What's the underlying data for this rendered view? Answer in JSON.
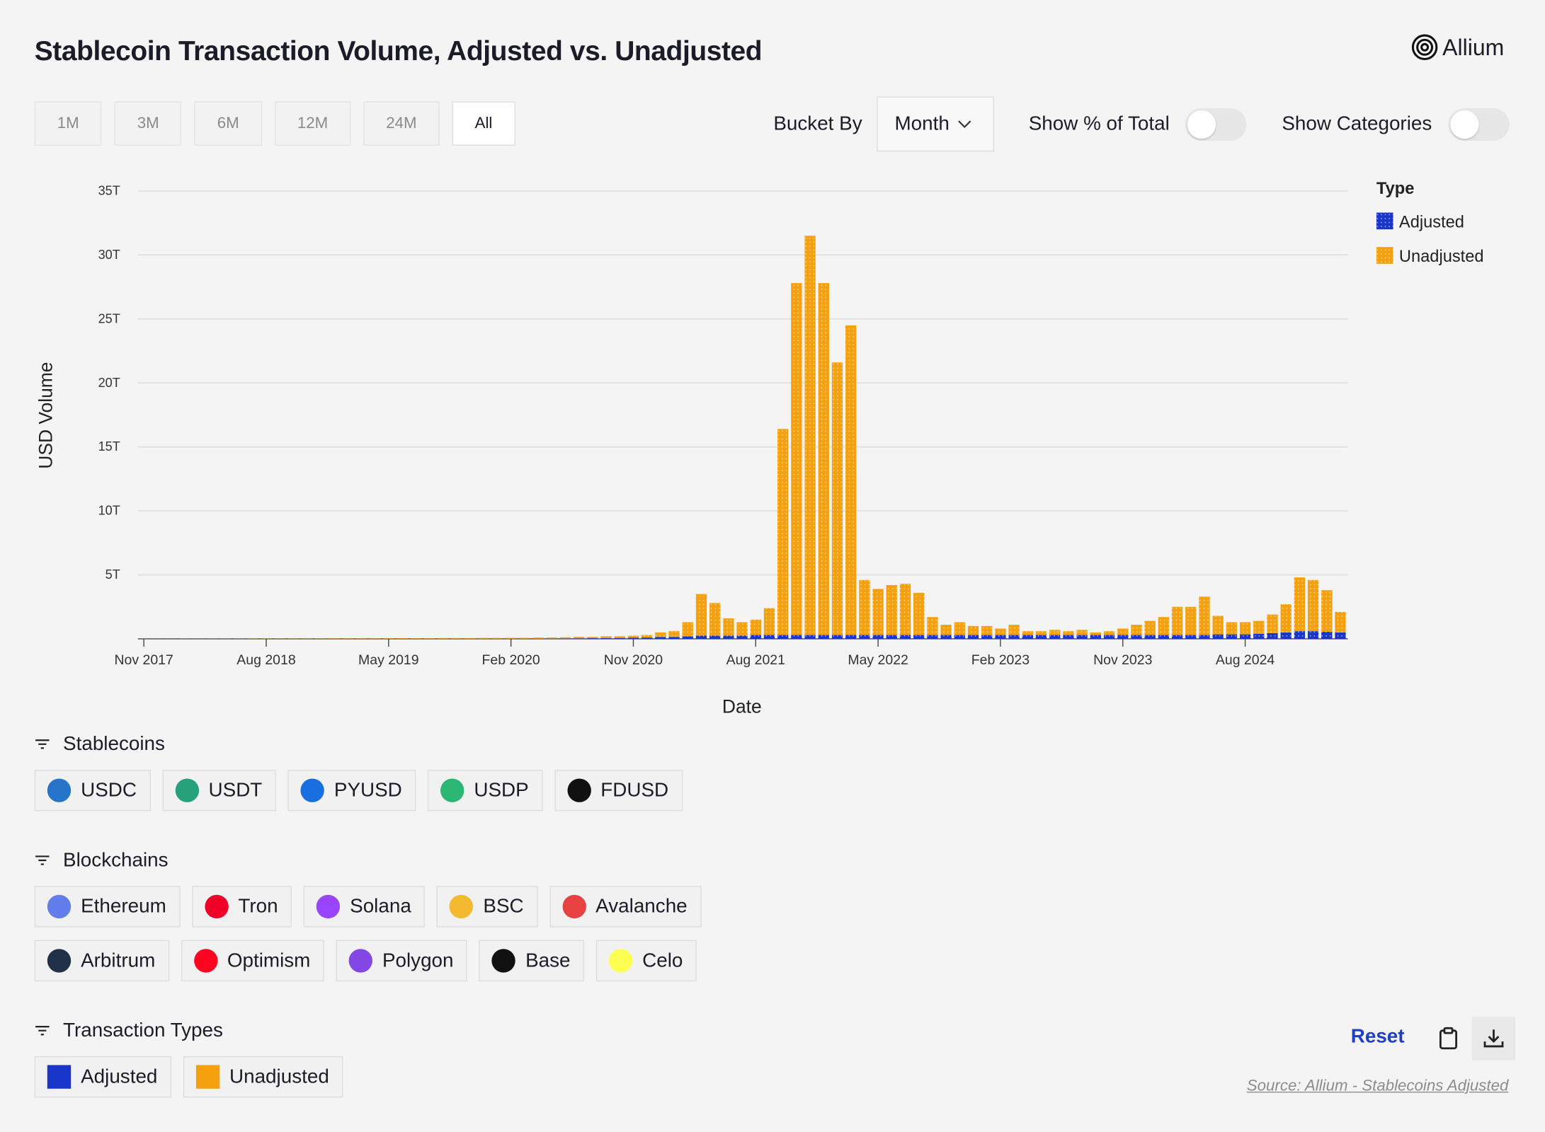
{
  "header": {
    "title": "Stablecoin Transaction Volume, Adjusted vs. Unadjusted",
    "brand": "Allium"
  },
  "controls": {
    "ranges": [
      "1M",
      "3M",
      "6M",
      "12M",
      "24M",
      "All"
    ],
    "bucket_label": "Bucket By",
    "bucket_value": "Month",
    "toggles": [
      "Show % of Total",
      "Show Categories"
    ]
  },
  "chart_data": {
    "type": "stacked_bar",
    "y_label": "USD Volume",
    "x_label": "Date",
    "legend_title": "Type",
    "legend": "right",
    "grid": true,
    "ylim": [
      0,
      35
    ],
    "yticks": [
      {
        "value": 5,
        "label": "5T"
      },
      {
        "value": 10,
        "label": "10T"
      },
      {
        "value": 15,
        "label": "15T"
      },
      {
        "value": 20,
        "label": "20T"
      },
      {
        "value": 25,
        "label": "25T"
      },
      {
        "value": 30,
        "label": "30T"
      },
      {
        "value": 35,
        "label": "35T"
      }
    ],
    "x": [
      "2017-11",
      "2017-12",
      "2018-01",
      "2018-02",
      "2018-03",
      "2018-04",
      "2018-05",
      "2018-06",
      "2018-07",
      "2018-08",
      "2018-09",
      "2018-10",
      "2018-11",
      "2018-12",
      "2019-01",
      "2019-02",
      "2019-03",
      "2019-04",
      "2019-05",
      "2019-06",
      "2019-07",
      "2019-08",
      "2019-09",
      "2019-10",
      "2019-11",
      "2019-12",
      "2020-01",
      "2020-02",
      "2020-03",
      "2020-04",
      "2020-05",
      "2020-06",
      "2020-07",
      "2020-08",
      "2020-09",
      "2020-10",
      "2020-11",
      "2020-12",
      "2021-01",
      "2021-02",
      "2021-03",
      "2021-04",
      "2021-05",
      "2021-06",
      "2021-07",
      "2021-08",
      "2021-09",
      "2021-10",
      "2021-11",
      "2021-12",
      "2022-01",
      "2022-02",
      "2022-03",
      "2022-04",
      "2022-05",
      "2022-06",
      "2022-07",
      "2022-08",
      "2022-09",
      "2022-10",
      "2022-11",
      "2022-12",
      "2023-01",
      "2023-02",
      "2023-03",
      "2023-04",
      "2023-05",
      "2023-06",
      "2023-07",
      "2023-08",
      "2023-09",
      "2023-10",
      "2023-11",
      "2023-12",
      "2024-01",
      "2024-02",
      "2024-03",
      "2024-04",
      "2024-05",
      "2024-06",
      "2024-07",
      "2024-08",
      "2024-09",
      "2024-10",
      "2024-11",
      "2024-12",
      "2025-01",
      "2025-02",
      "2025-03"
    ],
    "xticks": [
      {
        "value": "2017-11",
        "label": "Nov 2017"
      },
      {
        "value": "2018-08",
        "label": "Aug 2018"
      },
      {
        "value": "2019-05",
        "label": "May 2019"
      },
      {
        "value": "2020-02",
        "label": "Feb 2020"
      },
      {
        "value": "2020-11",
        "label": "Nov 2020"
      },
      {
        "value": "2021-08",
        "label": "Aug 2021"
      },
      {
        "value": "2022-05",
        "label": "May 2022"
      },
      {
        "value": "2023-02",
        "label": "Feb 2023"
      },
      {
        "value": "2023-11",
        "label": "Nov 2023"
      },
      {
        "value": "2024-08",
        "label": "Aug 2024"
      }
    ],
    "series": [
      {
        "name": "Adjusted",
        "color": "#1a35c9",
        "values": [
          0.01,
          0.01,
          0.01,
          0.01,
          0.01,
          0.01,
          0.01,
          0.01,
          0.01,
          0.01,
          0.01,
          0.01,
          0.01,
          0.01,
          0.01,
          0.01,
          0.01,
          0.01,
          0.01,
          0.01,
          0.01,
          0.01,
          0.01,
          0.01,
          0.01,
          0.01,
          0.01,
          0.01,
          0.01,
          0.01,
          0.02,
          0.03,
          0.04,
          0.05,
          0.06,
          0.07,
          0.08,
          0.1,
          0.15,
          0.15,
          0.2,
          0.25,
          0.25,
          0.25,
          0.25,
          0.3,
          0.3,
          0.3,
          0.3,
          0.3,
          0.3,
          0.3,
          0.3,
          0.3,
          0.3,
          0.3,
          0.3,
          0.3,
          0.3,
          0.3,
          0.3,
          0.3,
          0.3,
          0.3,
          0.3,
          0.3,
          0.3,
          0.3,
          0.3,
          0.3,
          0.3,
          0.3,
          0.3,
          0.3,
          0.3,
          0.3,
          0.3,
          0.3,
          0.3,
          0.35,
          0.35,
          0.35,
          0.4,
          0.45,
          0.5,
          0.6,
          0.6,
          0.55,
          0.5
        ]
      },
      {
        "name": "Unadjusted",
        "color": "#f5a00f",
        "values": [
          0.005,
          0.005,
          0.005,
          0.01,
          0.01,
          0.01,
          0.01,
          0.01,
          0.02,
          0.02,
          0.02,
          0.02,
          0.02,
          0.02,
          0.03,
          0.03,
          0.03,
          0.03,
          0.04,
          0.04,
          0.04,
          0.04,
          0.05,
          0.05,
          0.05,
          0.06,
          0.06,
          0.07,
          0.07,
          0.09,
          0.08,
          0.09,
          0.11,
          0.1,
          0.14,
          0.13,
          0.17,
          0.2,
          0.35,
          0.45,
          1.1,
          3.25,
          2.55,
          1.35,
          1.05,
          1.2,
          2.1,
          16.1,
          27.5,
          31.2,
          27.5,
          21.3,
          24.2,
          4.3,
          3.6,
          3.9,
          4.0,
          3.3,
          1.4,
          0.8,
          1.0,
          0.7,
          0.7,
          0.5,
          0.8,
          0.3,
          0.3,
          0.4,
          0.3,
          0.4,
          0.2,
          0.3,
          0.5,
          0.8,
          1.1,
          1.4,
          2.2,
          2.2,
          3.0,
          1.45,
          0.95,
          0.95,
          1.0,
          1.45,
          2.2,
          4.2,
          4.0,
          3.25,
          1.6
        ]
      }
    ]
  },
  "filters": {
    "sections": [
      {
        "title": "Stablecoins",
        "items": [
          "USDC",
          "USDT",
          "PYUSD",
          "USDP",
          "FDUSD"
        ]
      },
      {
        "title": "Blockchains",
        "items": [
          "Ethereum",
          "Tron",
          "Solana",
          "BSC",
          "Avalanche",
          "Arbitrum",
          "Optimism",
          "Polygon",
          "Base",
          "Celo"
        ]
      },
      {
        "title": "Transaction Types",
        "items": [
          "Adjusted",
          "Unadjusted"
        ]
      }
    ]
  },
  "footer": {
    "reset": "Reset",
    "source": "Source: Allium - Stablecoins Adjusted"
  }
}
